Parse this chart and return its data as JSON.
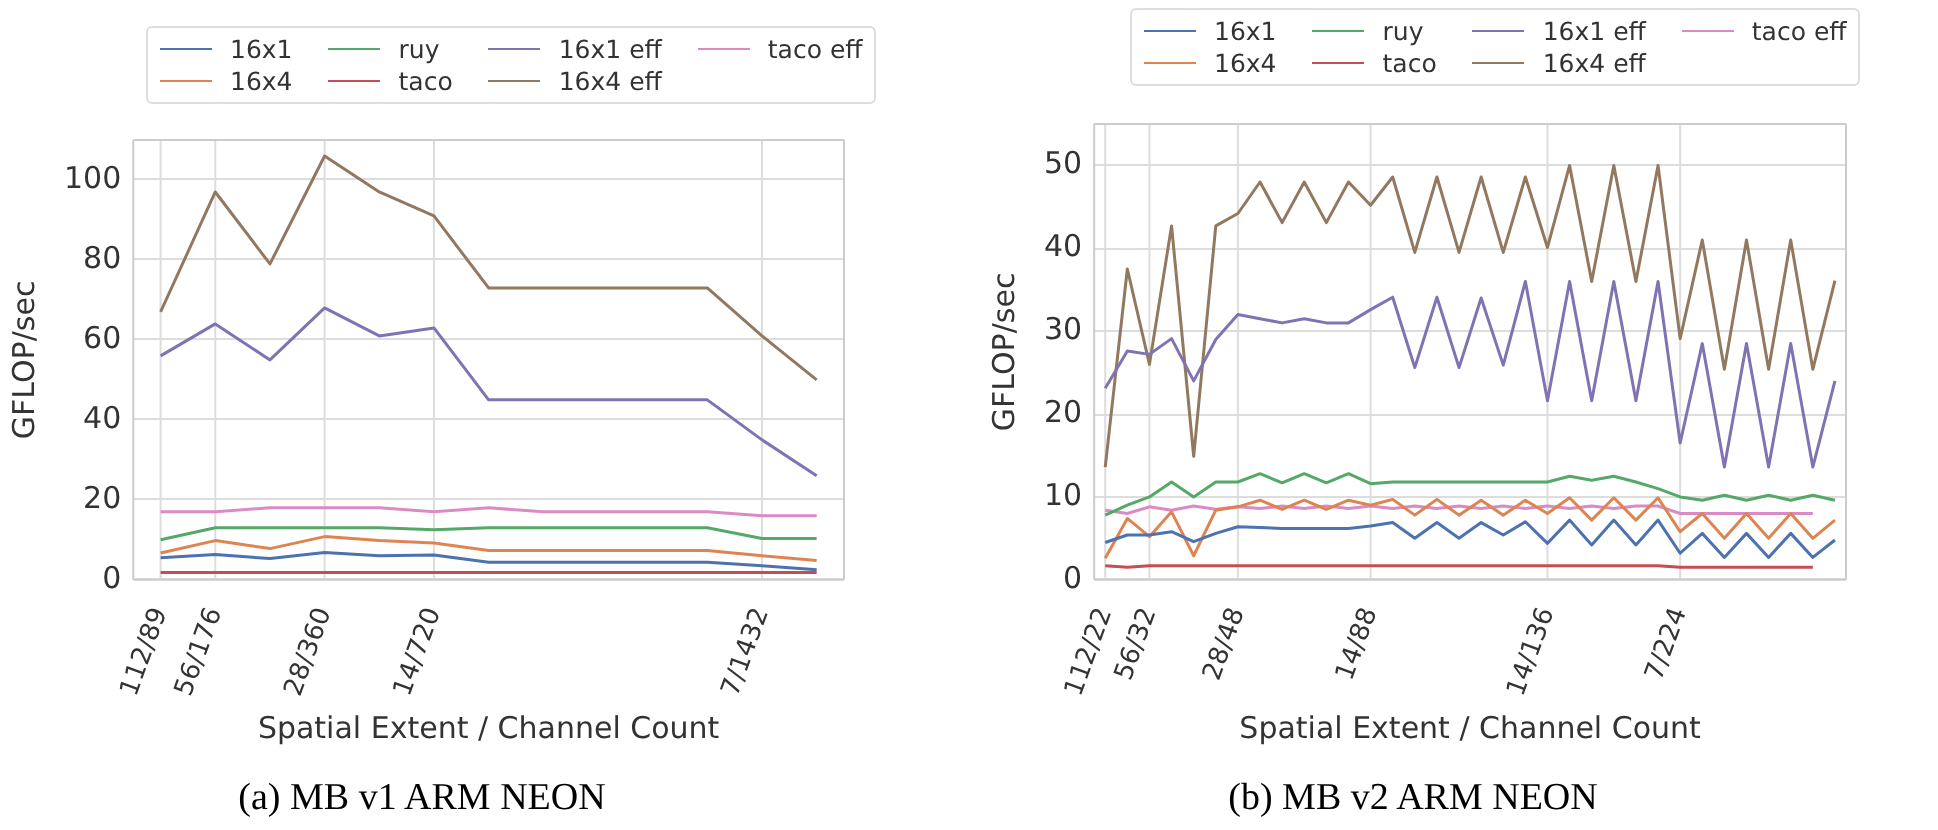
{
  "chart_data": [
    {
      "type": "line",
      "title": "(a) MB v1 ARM NEON",
      "xlabel": "Spatial Extent / Channel Count",
      "ylabel": "GFLOP/sec",
      "categories": [
        "112/89",
        "56/176",
        null,
        "28/360",
        null,
        "14/720",
        null,
        null,
        null,
        null,
        null,
        "7/1432",
        null
      ],
      "ylim": [
        0,
        110
      ],
      "yticks": [
        0,
        20,
        40,
        60,
        80,
        100
      ],
      "grid": true,
      "legend": "top",
      "series": [
        {
          "name": "16x1",
          "color": "#4c72b0",
          "values": [
            5.5,
            6.3,
            5.3,
            6.8,
            6,
            6.2,
            4.4,
            4.4,
            4.4,
            4.4,
            4.4,
            3.5,
            2.5
          ]
        },
        {
          "name": "16x4",
          "color": "#dd8452",
          "values": [
            6.7,
            9.8,
            7.8,
            10.8,
            9.8,
            9.2,
            7.3,
            7.3,
            7.3,
            7.3,
            7.3,
            6,
            4.8
          ]
        },
        {
          "name": "ruy",
          "color": "#55a868",
          "values": [
            10,
            13,
            13,
            13,
            13,
            12.5,
            13,
            13,
            13,
            13,
            13,
            10.3,
            10.3
          ]
        },
        {
          "name": "taco",
          "color": "#c44e52",
          "values": [
            1.8,
            1.8,
            1.8,
            1.8,
            1.8,
            1.8,
            1.8,
            1.8,
            1.8,
            1.8,
            1.8,
            1.8,
            1.8
          ]
        },
        {
          "name": "16x1 eff",
          "color": "#8172b3",
          "values": [
            56,
            64,
            55,
            68,
            61,
            63,
            45,
            45,
            45,
            45,
            45,
            35,
            26
          ]
        },
        {
          "name": "16x4 eff",
          "color": "#937860",
          "values": [
            67,
            97,
            79,
            106,
            97,
            91,
            73,
            73,
            73,
            73,
            73,
            61,
            50
          ]
        },
        {
          "name": "taco eff",
          "color": "#da8bc3",
          "values": [
            17,
            17,
            18,
            18,
            18,
            17,
            18,
            17,
            17,
            17,
            17,
            16,
            16
          ]
        }
      ]
    },
    {
      "type": "line",
      "title": "(b) MB v2 ARM NEON",
      "xlabel": "Spatial Extent / Channel Count",
      "ylabel": "GFLOP/sec",
      "categories": [
        "112/22",
        null,
        "56/32",
        null,
        null,
        null,
        "28/48",
        null,
        null,
        null,
        null,
        null,
        "14/88",
        null,
        null,
        null,
        null,
        null,
        null,
        null,
        "14/136",
        null,
        null,
        null,
        null,
        null,
        "7/224",
        null,
        null,
        null,
        null,
        null,
        null,
        null
      ],
      "ylim": [
        0,
        55
      ],
      "yticks": [
        0,
        10,
        20,
        30,
        40,
        50
      ],
      "grid": true,
      "legend": "top",
      "series": [
        {
          "name": "16x1",
          "color": "#4c72b0",
          "values": [
            4.5,
            5.4,
            5.4,
            5.8,
            4.6,
            5.6,
            6.4,
            6.3,
            6.2,
            6.2,
            6.2,
            6.2,
            6.5,
            6.9,
            5,
            6.9,
            5,
            6.9,
            5.4,
            7,
            4.4,
            7.2,
            4.2,
            7.2,
            4.2,
            7.2,
            3.2,
            5.6,
            2.7,
            5.6,
            2.7,
            5.6,
            2.7,
            4.8
          ]
        },
        {
          "name": "16x4",
          "color": "#dd8452",
          "values": [
            2.6,
            7.4,
            5.2,
            8.2,
            2.9,
            8.4,
            8.8,
            9.6,
            8.5,
            9.6,
            8.5,
            9.6,
            9,
            9.7,
            7.8,
            9.7,
            7.8,
            9.6,
            7.8,
            9.6,
            8,
            9.9,
            7.2,
            9.9,
            7.2,
            9.9,
            5.8,
            8,
            5,
            8,
            5,
            8,
            5,
            7.2
          ]
        },
        {
          "name": "ruy",
          "color": "#55a868",
          "values": [
            7.8,
            9,
            10,
            11.8,
            10,
            11.8,
            11.8,
            12.8,
            11.7,
            12.8,
            11.7,
            12.8,
            11.6,
            11.8,
            11.8,
            11.8,
            11.8,
            11.8,
            11.8,
            11.8,
            11.8,
            12.5,
            12,
            12.5,
            11.8,
            11,
            10,
            9.6,
            10.2,
            9.6,
            10.2,
            9.6,
            10.2,
            9.6
          ]
        },
        {
          "name": "taco",
          "color": "#c44e52",
          "values": [
            1.7,
            1.5,
            1.7,
            1.7,
            1.7,
            1.7,
            1.7,
            1.7,
            1.7,
            1.7,
            1.7,
            1.7,
            1.7,
            1.7,
            1.7,
            1.7,
            1.7,
            1.7,
            1.7,
            1.7,
            1.7,
            1.7,
            1.7,
            1.7,
            1.7,
            1.7,
            1.5,
            1.5,
            1.5,
            1.5,
            1.5,
            1.5,
            1.5,
            null
          ]
        },
        {
          "name": "16x1 eff",
          "color": "#8172b3",
          "values": [
            23.1,
            27.6,
            27.2,
            29.1,
            24,
            29,
            32,
            31.5,
            31,
            31.5,
            31,
            31,
            32.6,
            34.1,
            25.6,
            34.1,
            25.6,
            34,
            25.9,
            36,
            21.6,
            36,
            21.6,
            36,
            21.6,
            36,
            16.5,
            28.5,
            13.6,
            28.5,
            13.6,
            28.5,
            13.6,
            24
          ]
        },
        {
          "name": "16x4 eff",
          "color": "#937860",
          "values": [
            13.6,
            37.5,
            26,
            42.7,
            14.9,
            42.7,
            44.2,
            48,
            43.1,
            48,
            43.1,
            48,
            45.2,
            48.6,
            39.5,
            48.6,
            39.5,
            48.6,
            39.5,
            48.6,
            40.1,
            50,
            36,
            50,
            36,
            50,
            29.1,
            41,
            25.4,
            41,
            25.4,
            41,
            25.4,
            36.1
          ]
        },
        {
          "name": "taco eff",
          "color": "#da8bc3",
          "values": [
            8.4,
            8,
            8.8,
            8.4,
            8.9,
            8.5,
            8.8,
            8.6,
            8.9,
            8.6,
            8.9,
            8.6,
            8.9,
            8.6,
            8.9,
            8.6,
            8.9,
            8.6,
            8.9,
            8.6,
            8.9,
            8.6,
            8.9,
            8.6,
            8.9,
            8.9,
            8,
            8,
            8,
            8,
            8,
            8,
            8,
            null
          ]
        }
      ]
    }
  ]
}
